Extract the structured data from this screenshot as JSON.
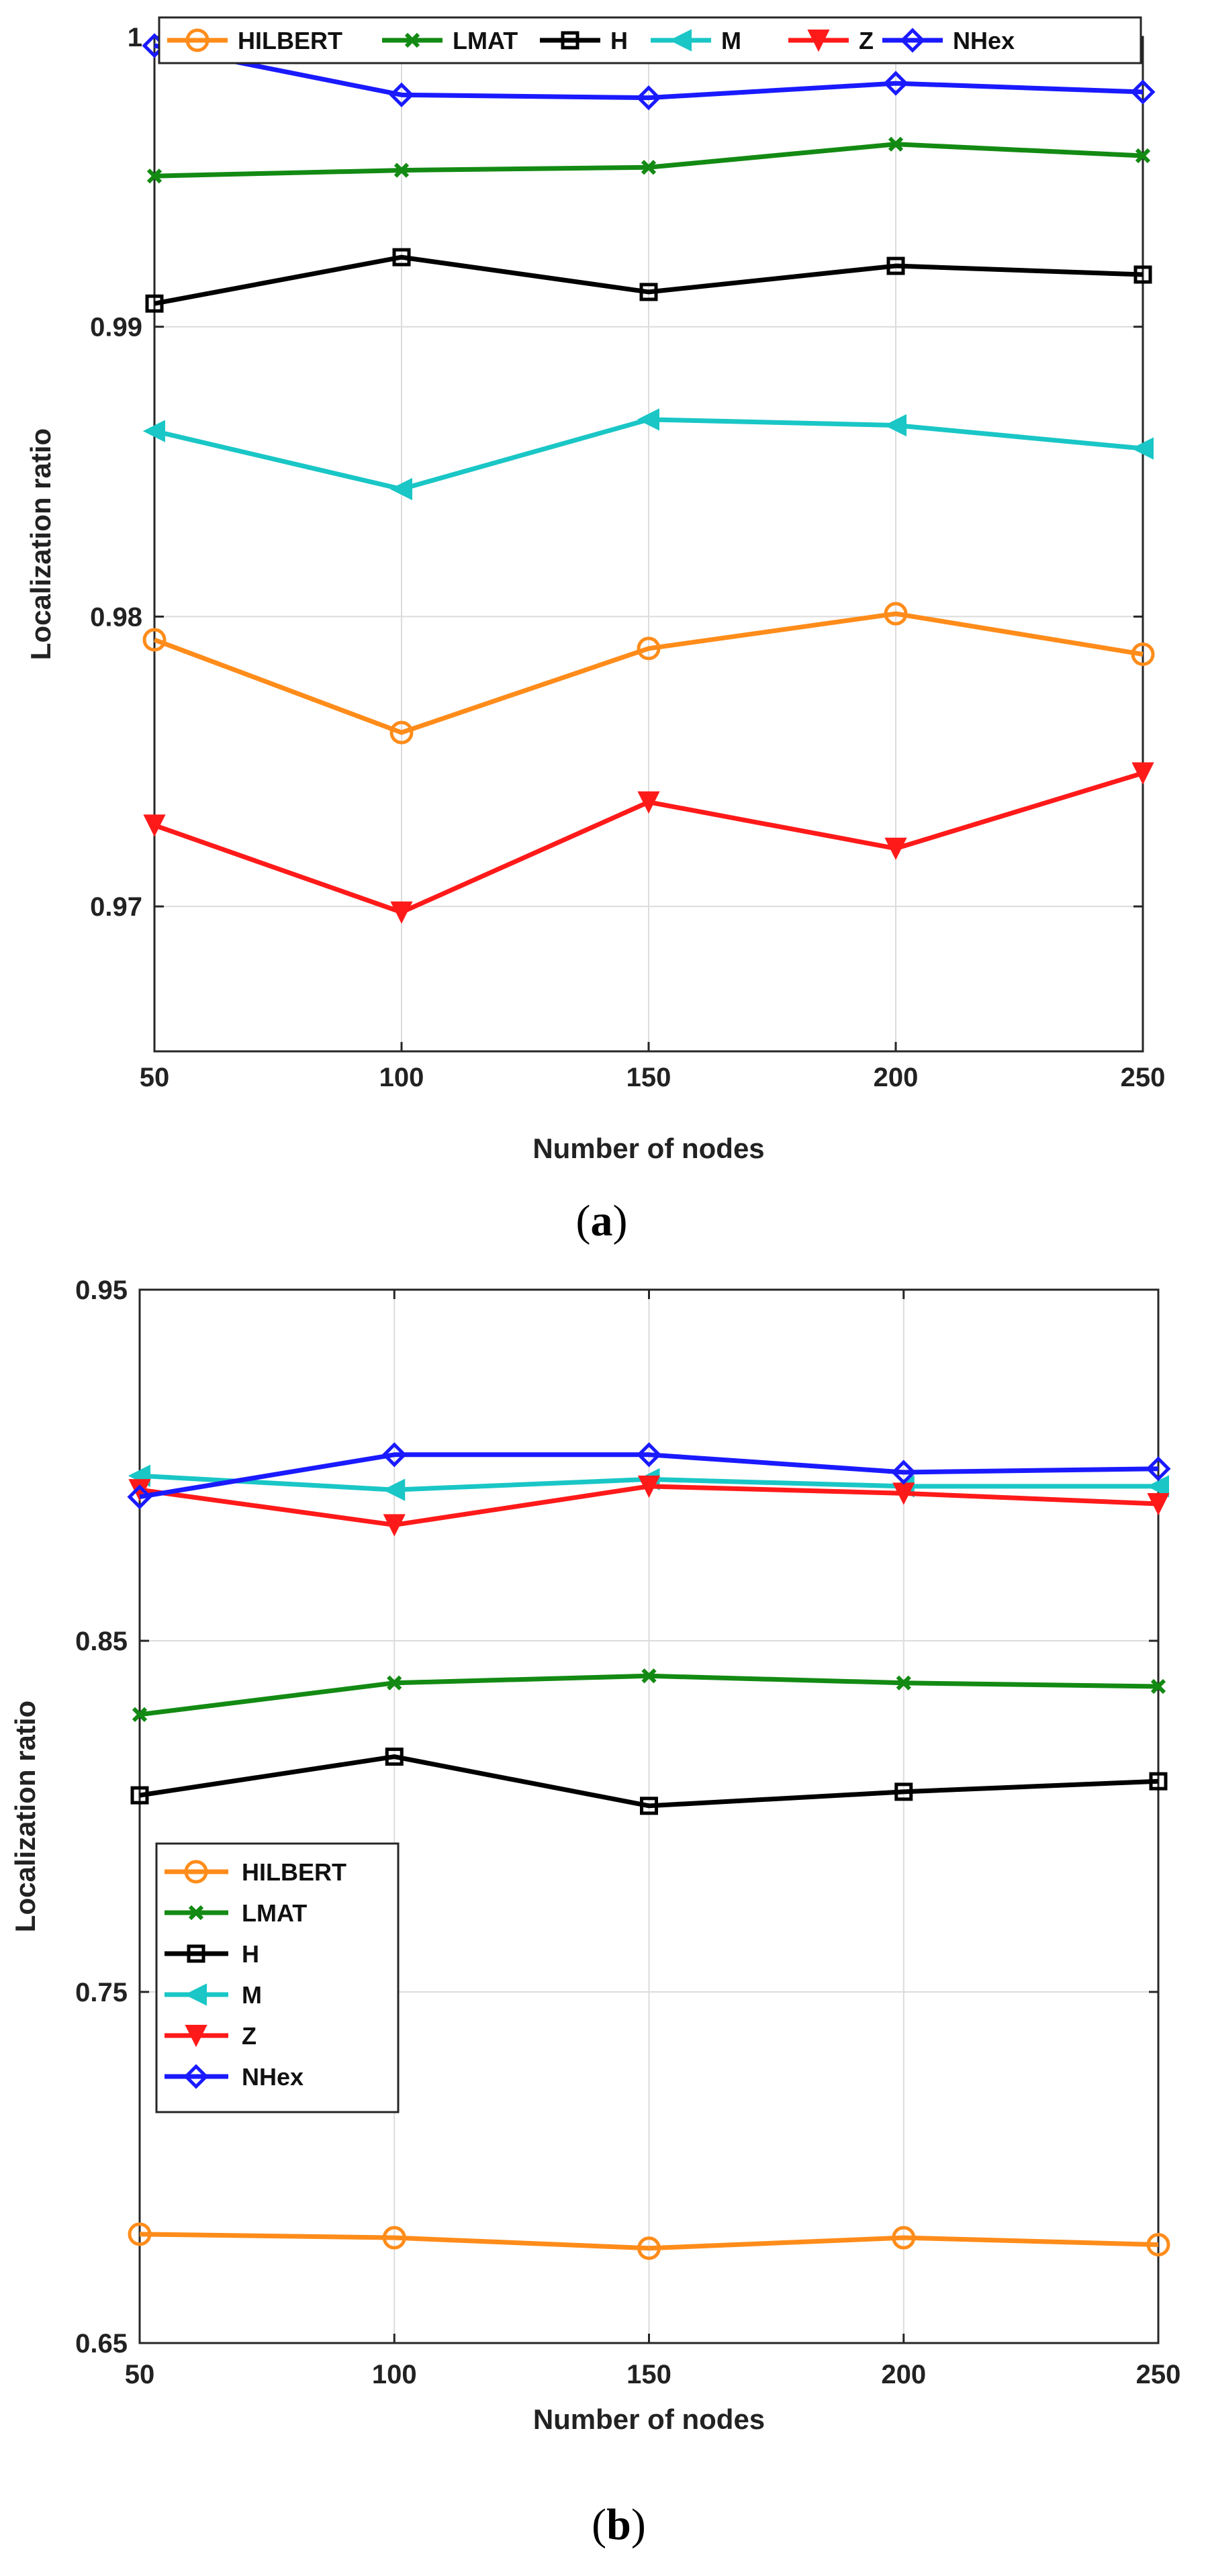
{
  "chart_data": [
    {
      "type": "line",
      "panel": "a",
      "caption_letter": "a",
      "xlabel": "Number of nodes",
      "ylabel": "Localization ratio",
      "x": [
        50,
        100,
        150,
        200,
        250
      ],
      "xticks": [
        "50",
        "100",
        "150",
        "200",
        "250"
      ],
      "ylim": [
        0.965,
        1.0
      ],
      "yticks": [
        0.97,
        0.98,
        0.99,
        1.0
      ],
      "ytick_labels": [
        "0.97",
        "0.98",
        "0.99",
        "1"
      ],
      "grid": true,
      "legend_position": "top, horizontal",
      "series": [
        {
          "name": "HILBERT",
          "color": "#ff8c1a",
          "marker": "circle",
          "values": [
            0.9792,
            0.976,
            0.9789,
            0.9801,
            0.9787
          ]
        },
        {
          "name": "LMAT",
          "color": "#138a13",
          "marker": "x",
          "values": [
            0.9952,
            0.9954,
            0.9955,
            0.9963,
            0.9959
          ]
        },
        {
          "name": "H",
          "color": "#000000",
          "marker": "square",
          "values": [
            0.9908,
            0.9924,
            0.9912,
            0.9921,
            0.9918
          ]
        },
        {
          "name": "M",
          "color": "#1ac6c6",
          "marker": "triangle-left",
          "values": [
            0.9864,
            0.9844,
            0.9868,
            0.9866,
            0.9858
          ]
        },
        {
          "name": "Z",
          "color": "#ff1a1a",
          "marker": "triangle-down",
          "values": [
            0.9728,
            0.9698,
            0.9736,
            0.972,
            0.9746
          ]
        },
        {
          "name": "NHex",
          "color": "#1a1aff",
          "marker": "diamond",
          "values": [
            0.9997,
            0.998,
            0.9979,
            0.9984,
            0.9981
          ]
        }
      ]
    },
    {
      "type": "line",
      "panel": "b",
      "caption_letter": "b",
      "xlabel": "Number of nodes",
      "ylabel": "Localization ratio",
      "x": [
        50,
        100,
        150,
        200,
        250
      ],
      "xticks": [
        "50",
        "100",
        "150",
        "200",
        "250"
      ],
      "ylim": [
        0.65,
        0.95
      ],
      "yticks": [
        0.65,
        0.75,
        0.85,
        0.95
      ],
      "ytick_labels": [
        "0.65",
        "0.75",
        "0.85",
        "0.95"
      ],
      "grid": true,
      "legend_position": "center-left, vertical",
      "series": [
        {
          "name": "HILBERT",
          "color": "#ff8c1a",
          "marker": "circle",
          "values": [
            0.681,
            0.68,
            0.677,
            0.68,
            0.678
          ]
        },
        {
          "name": "LMAT",
          "color": "#138a13",
          "marker": "x",
          "values": [
            0.829,
            0.838,
            0.84,
            0.838,
            0.837
          ]
        },
        {
          "name": "H",
          "color": "#000000",
          "marker": "square",
          "values": [
            0.806,
            0.817,
            0.803,
            0.807,
            0.81
          ]
        },
        {
          "name": "M",
          "color": "#1ac6c6",
          "marker": "triangle-left",
          "values": [
            0.897,
            0.893,
            0.896,
            0.894,
            0.894
          ]
        },
        {
          "name": "Z",
          "color": "#ff1a1a",
          "marker": "triangle-down",
          "values": [
            0.893,
            0.883,
            0.894,
            0.892,
            0.889
          ]
        },
        {
          "name": "NHex",
          "color": "#1a1aff",
          "marker": "diamond",
          "values": [
            0.891,
            0.903,
            0.903,
            0.898,
            0.899
          ]
        }
      ]
    }
  ]
}
